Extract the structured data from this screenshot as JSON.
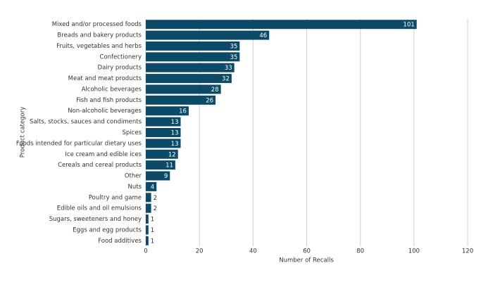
{
  "chart_data": {
    "type": "bar",
    "orientation": "horizontal",
    "categories": [
      "Mixed and/or processed foods",
      "Breads and bakery products",
      "Fruits, vegetables and herbs",
      "Confectionery",
      "Dairy products",
      "Meat and meat products",
      "Alcoholic beverages",
      "Fish and fish products",
      "Non-alcoholic beverages",
      "Salts, stocks, sauces and condiments",
      "Spices",
      "Foods intended for particular dietary uses",
      "Ice cream and edible ices",
      "Cereals and cereal products",
      "Other",
      "Nuts",
      "Poultry and game",
      "Edible oils and oil emulsions",
      "Sugars, sweeteners and honey",
      "Eggs and egg products",
      "Food additives"
    ],
    "values": [
      101,
      46,
      35,
      35,
      33,
      32,
      28,
      26,
      16,
      13,
      13,
      13,
      12,
      11,
      9,
      4,
      2,
      2,
      1,
      1,
      1
    ],
    "color": "#0d4a67",
    "x_label": "Number of Recalls",
    "y_label": "Product category",
    "xlim": [
      0,
      120
    ],
    "xticks": [
      0,
      20,
      40,
      60,
      80,
      100,
      120
    ],
    "grid": true
  }
}
